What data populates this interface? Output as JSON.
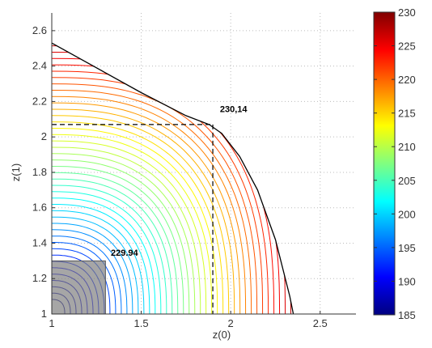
{
  "chart_data": {
    "type": "contour",
    "xlabel": "z(0)",
    "ylabel": "z(1)",
    "xlim": [
      1,
      2.7
    ],
    "ylim": [
      1,
      2.7
    ],
    "x_ticks": [
      "1",
      "1.5",
      "2",
      "2.5"
    ],
    "y_ticks": [
      "1",
      "1.2",
      "1.4",
      "1.6",
      "1.8",
      "2",
      "2.2",
      "2.4",
      "2.6"
    ],
    "grid": true,
    "grid_style": "dotted",
    "colormap": "jet",
    "colorbar": {
      "min": 185,
      "max": 230,
      "ticks": [
        "185",
        "190",
        "195",
        "200",
        "205",
        "210",
        "215",
        "220",
        "225",
        "230"
      ]
    },
    "boundary_curve": {
      "color": "#000000",
      "points": [
        [
          1.0,
          2.53
        ],
        [
          1.5,
          2.25
        ],
        [
          1.75,
          2.12
        ],
        [
          1.88,
          2.07
        ],
        [
          1.95,
          2.02
        ],
        [
          2.05,
          1.89
        ],
        [
          2.15,
          1.7
        ],
        [
          2.25,
          1.42
        ],
        [
          2.33,
          1.1
        ],
        [
          2.35,
          1.0
        ]
      ]
    },
    "contour_levels": {
      "start": 185.5,
      "end": 230,
      "count": 44
    },
    "dashed_lines": [
      {
        "from": [
          1.0,
          2.07
        ],
        "to": [
          1.9,
          2.07
        ]
      },
      {
        "from": [
          1.9,
          2.07
        ],
        "to": [
          1.9,
          1.0
        ]
      }
    ],
    "shaded_region": {
      "x": [
        1.0,
        1.3
      ],
      "y": [
        1.0,
        1.3
      ],
      "color": "#808080"
    },
    "annotations": [
      {
        "text": "230,14",
        "x": 1.94,
        "y": 2.14
      },
      {
        "text": "229.94",
        "x": 1.33,
        "y": 1.33
      }
    ]
  }
}
